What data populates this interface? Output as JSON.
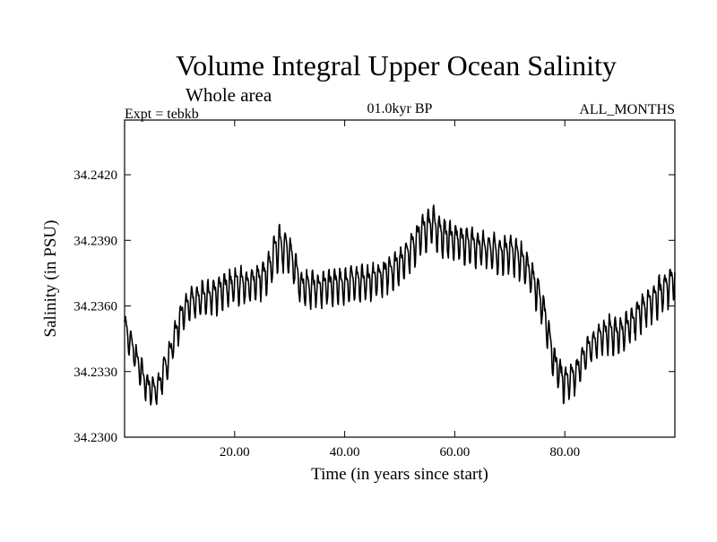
{
  "chart_data": {
    "type": "line",
    "title": "Volume Integral Upper Ocean Salinity",
    "subtitle": "Whole area",
    "experiment": "Expt = tebkb",
    "period": "01.0kyr BP",
    "months": "ALL_MONTHS",
    "xlabel": "Time (in years since start)",
    "ylabel": "Salinity (in PSU)",
    "xlim": [
      0,
      100
    ],
    "ylim": [
      34.23,
      34.2445
    ],
    "xticks": [
      20,
      40,
      60,
      80
    ],
    "xtick_labels": [
      "20.00",
      "40.00",
      "60.00",
      "80.00"
    ],
    "yticks": [
      34.23,
      34.233,
      34.236,
      34.239,
      34.242
    ],
    "ytick_labels": [
      "34.2300",
      "34.2330",
      "34.2360",
      "34.2390",
      "34.2420"
    ],
    "cycle_period_years": 1,
    "series": [
      {
        "name": "Salinity",
        "x": [
          0,
          2,
          4,
          6,
          8,
          10,
          12,
          14,
          16,
          18,
          20,
          22,
          24,
          26,
          28,
          30,
          32,
          34,
          36,
          38,
          40,
          42,
          44,
          46,
          48,
          50,
          52,
          54,
          56,
          58,
          60,
          62,
          64,
          66,
          68,
          70,
          72,
          74,
          76,
          78,
          80,
          82,
          84,
          86,
          88,
          90,
          92,
          94,
          96,
          98,
          100
        ],
        "mean": [
          34.2351,
          34.2337,
          34.2323,
          34.2322,
          34.2336,
          34.2354,
          34.2362,
          34.2364,
          34.2365,
          34.2368,
          34.237,
          34.237,
          34.2371,
          34.2376,
          34.2388,
          34.2385,
          34.2369,
          34.2368,
          34.2369,
          34.237,
          34.237,
          34.2372,
          34.2371,
          34.2373,
          34.2376,
          34.2379,
          34.2386,
          34.2394,
          34.2398,
          34.2392,
          34.239,
          34.2389,
          34.2387,
          34.2386,
          34.2384,
          34.2385,
          34.2382,
          34.2374,
          34.236,
          34.2335,
          34.2325,
          34.2329,
          34.2339,
          34.2345,
          34.2348,
          34.2347,
          34.2352,
          34.2358,
          34.2362,
          34.2368,
          34.2373
        ],
        "amplitude": [
          0.001,
          0.001,
          0.001,
          0.0011,
          0.0011,
          0.0011,
          0.0011,
          0.0011,
          0.0012,
          0.0012,
          0.0012,
          0.0012,
          0.0012,
          0.0013,
          0.0015,
          0.0013,
          0.0012,
          0.0012,
          0.0012,
          0.0012,
          0.0012,
          0.0012,
          0.0012,
          0.0012,
          0.0012,
          0.0013,
          0.0013,
          0.0013,
          0.0014,
          0.0013,
          0.0013,
          0.0013,
          0.0012,
          0.0012,
          0.0013,
          0.0013,
          0.0013,
          0.0012,
          0.0012,
          0.0012,
          0.0012,
          0.0011,
          0.0011,
          0.0011,
          0.0012,
          0.0012,
          0.0012,
          0.0012,
          0.0012,
          0.0013,
          0.0013
        ]
      }
    ]
  },
  "colors": {
    "line": "#000000",
    "axes": "#000000",
    "background": "#ffffff"
  }
}
